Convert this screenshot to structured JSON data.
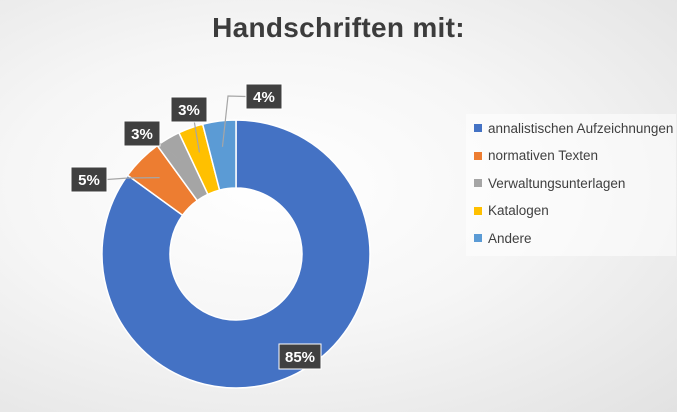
{
  "chart_data": {
    "type": "pie",
    "donut": true,
    "title": "Handschriften mit:",
    "slices": [
      {
        "name": "annalistischen Aufzeichnungen",
        "value": 85,
        "label": "85%",
        "color": "#4472C4"
      },
      {
        "name": "normativen Texten",
        "value": 5,
        "label": "5%",
        "color": "#ED7D31"
      },
      {
        "name": "Verwaltungsunterlagen",
        "value": 3,
        "label": "3%",
        "color": "#A5A5A5"
      },
      {
        "name": "Katalogen",
        "value": 3,
        "label": "3%",
        "color": "#FFC000"
      },
      {
        "name": "Andere",
        "value": 4,
        "label": "4%",
        "color": "#5B9BD5"
      }
    ],
    "legend": "right",
    "label_style": {
      "background": "#404040",
      "text": "#ffffff"
    }
  }
}
